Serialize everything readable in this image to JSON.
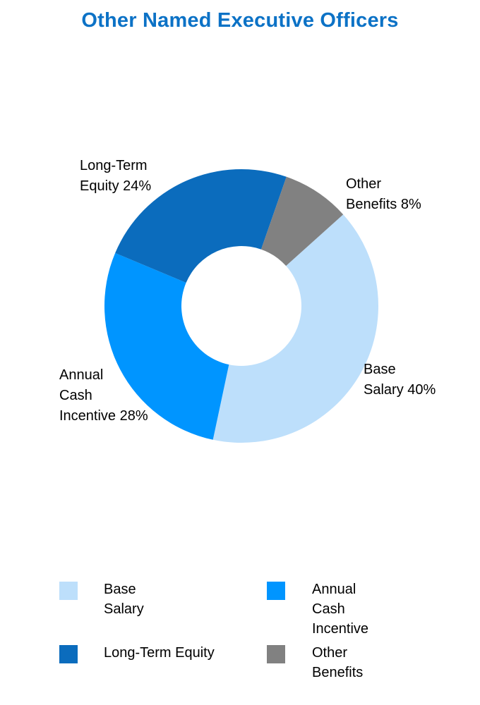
{
  "title": {
    "text": "Other Named Executive Officers",
    "color": "#0C72C6"
  },
  "chart_data": {
    "type": "pie",
    "subtype": "donut",
    "title": "Other Named Executive Officers",
    "categories": [
      "Base Salary",
      "Annual Cash Incentive",
      "Long-Term Equity",
      "Other Benefits"
    ],
    "values": [
      40,
      28,
      24,
      8
    ],
    "unit": "%",
    "colors": [
      "#BDDFFB",
      "#0095FF",
      "#0B6CBD",
      "#818181"
    ],
    "start_angle_deg": 48,
    "direction": "clockwise",
    "inner_radius_ratio": 0.438,
    "legend_position": "bottom",
    "data_labels": "outside"
  },
  "segment_labels": [
    {
      "text": "Long-Term\nEquity 24%"
    },
    {
      "text": "Other\nBenefits 8%"
    },
    {
      "text": "Base\nSalary 40%"
    },
    {
      "text": "Annual\nCash\nIncentive 28%"
    }
  ],
  "legend": {
    "items": [
      {
        "label": "Base\nSalary"
      },
      {
        "label": "Annual\nCash\nIncentive"
      },
      {
        "label": "Long-Term Equity"
      },
      {
        "label": "Other\nBenefits"
      }
    ]
  }
}
